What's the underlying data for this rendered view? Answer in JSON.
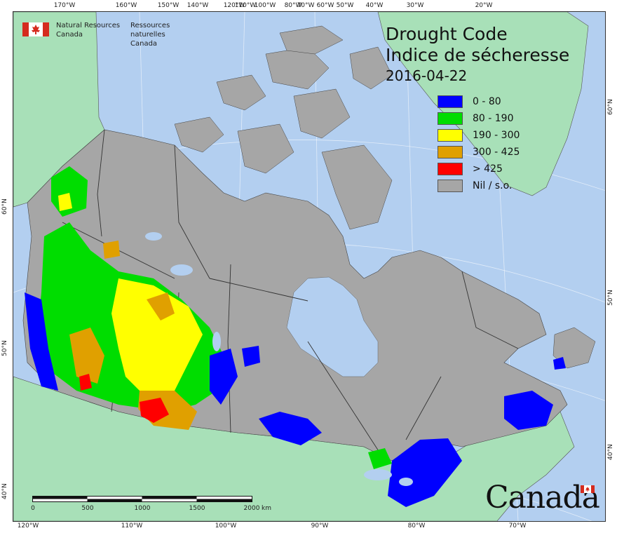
{
  "title": {
    "en": "Drought Code",
    "fr": "Indice de sécheresse",
    "date": "2016-04-22"
  },
  "agency": {
    "en_line1": "Natural Resources",
    "en_line2": "Canada",
    "fr_line1": "Ressources naturelles",
    "fr_line2": "Canada"
  },
  "wordmark": "Canada",
  "legend": [
    {
      "label": "0 - 80",
      "color": "#0000ff"
    },
    {
      "label": "80 - 190",
      "color": "#00dd00"
    },
    {
      "label": "190 - 300",
      "color": "#ffff00"
    },
    {
      "label": "300 - 425",
      "color": "#e0a000"
    },
    {
      "label": "> 425",
      "color": "#ff0000"
    },
    {
      "label": "Nil / s.o.",
      "color": "#a6a6a6"
    }
  ],
  "ticks_top": [
    "170°W",
    "160°W",
    "150°W",
    "140°W",
    "120°W",
    "110°W",
    "100°W",
    "80°W",
    "70°W",
    "60°W",
    "50°W",
    "40°W",
    "30°W",
    "20°W"
  ],
  "ticks_bottom": [
    "120°W",
    "110°W",
    "100°W",
    "90°W",
    "80°W",
    "70°W"
  ],
  "ticks_left": [
    "60°N",
    "50°N",
    "40°N"
  ],
  "ticks_right": [
    "60°N",
    "50°N",
    "40°N"
  ],
  "scale": {
    "labels": [
      "0",
      "500",
      "1000",
      "1500",
      "2000"
    ],
    "unit": "km"
  },
  "colors": {
    "ocean": "#b3cff0",
    "foreign_land": "#a8e0b8",
    "canada_nil": "#a6a6a6",
    "borders": "#333333"
  }
}
